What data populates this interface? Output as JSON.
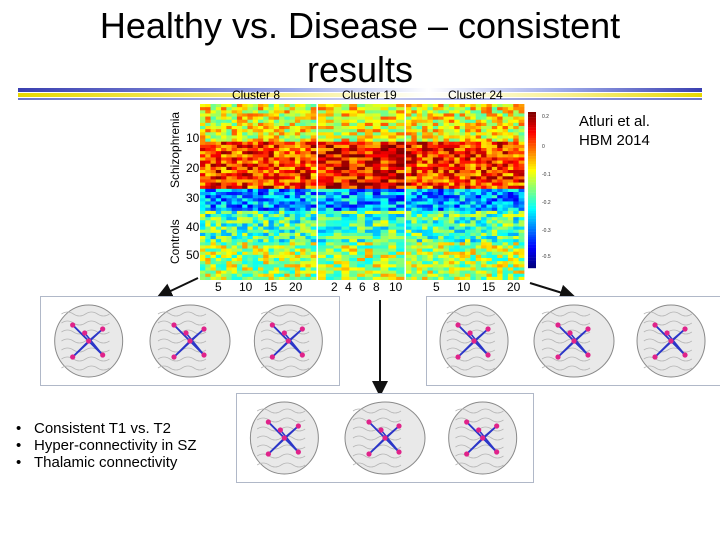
{
  "slide": {
    "title_line1": "Healthy vs. Disease – consistent",
    "title_line2": "results",
    "citation_line1": "Atluri et al.",
    "citation_line2": "HBM 2014"
  },
  "heatmap": {
    "cluster_labels": [
      "Cluster 8",
      "Cluster 19",
      "Cluster 24"
    ],
    "row_tick_labels": [
      "10",
      "20",
      "30",
      "40",
      "50"
    ],
    "group_labels": [
      "Schizophrenia",
      "Controls"
    ],
    "x_ticks_panel1": [
      "5",
      "10",
      "15",
      "20"
    ],
    "x_ticks_panel2": [
      "2",
      "4",
      "6",
      "8",
      "10"
    ],
    "x_ticks_panel3": [
      "5",
      "10",
      "15",
      "20"
    ],
    "colorbar_labels": [
      "0.2",
      "0",
      "-0.1",
      "-0.2",
      "-0.3",
      "-0.5"
    ]
  },
  "bullets": [
    "Consistent T1 vs. T2",
    "Hyper-connectivity in SZ",
    "Thalamic connectivity"
  ],
  "colors": {
    "edge": "#2b36c8",
    "node": "#e0238a",
    "panel_border": "#b0b8c8"
  }
}
